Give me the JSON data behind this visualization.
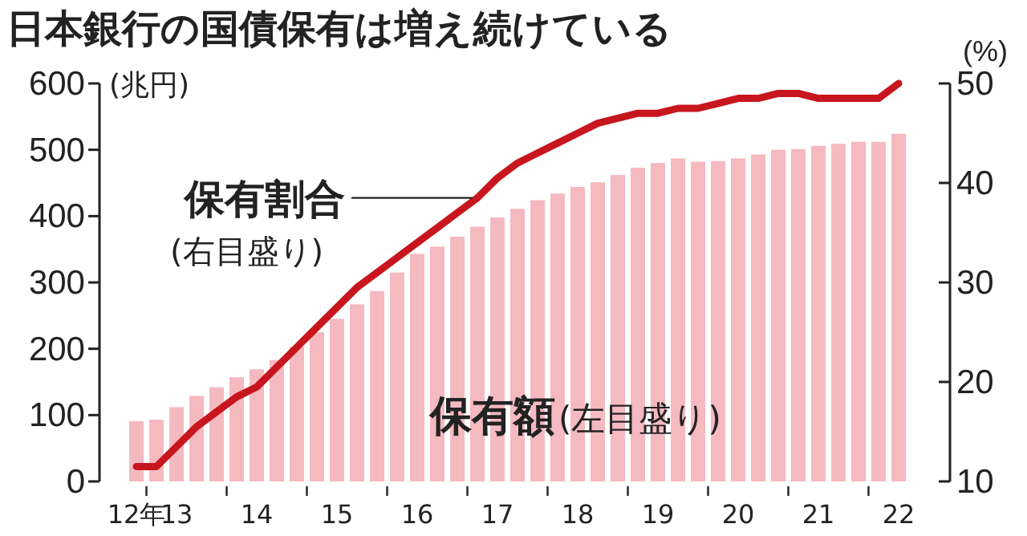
{
  "chart_data": {
    "type": "bar",
    "title": "日本銀行の国債保有は増え続けている",
    "ylabel": "(兆円)",
    "y2label": "(%)",
    "categories": [
      "12年",
      null,
      "13",
      null,
      null,
      null,
      "14",
      null,
      null,
      null,
      "15",
      null,
      null,
      null,
      "16",
      null,
      null,
      null,
      "17",
      null,
      null,
      null,
      "18",
      null,
      null,
      null,
      "19",
      null,
      null,
      null,
      "20",
      null,
      null,
      null,
      "21",
      null,
      null,
      null,
      "22"
    ],
    "series": [
      {
        "name": "保有額",
        "color": "#f5b9c0",
        "values": [
          91,
          93,
          112,
          129,
          142,
          157,
          169,
          183,
          203,
          225,
          245,
          267,
          287,
          315,
          343,
          354,
          369,
          384,
          398,
          411,
          424,
          434,
          444,
          451,
          462,
          473,
          480,
          487,
          482,
          483,
          487,
          493,
          500,
          501,
          506,
          509,
          512,
          512,
          524
        ]
      },
      {
        "name": "保有割合",
        "type": "line",
        "axis": "y2",
        "color": "#c8161e",
        "values": [
          11.5,
          11.5,
          13.5,
          15.5,
          17,
          18.5,
          19.5,
          21.5,
          23.5,
          25.5,
          27.5,
          29.5,
          31,
          32.5,
          34,
          35.5,
          37,
          38.5,
          40.5,
          42,
          43,
          44,
          45,
          46,
          46.5,
          47,
          47,
          47.5,
          47.5,
          48,
          48.5,
          48.5,
          49,
          49,
          48.5,
          48.5,
          48.5,
          48.5,
          50
        ]
      }
    ],
    "ylim": [
      0,
      600
    ],
    "yticks": [
      0,
      100,
      200,
      300,
      400,
      500,
      600
    ],
    "y2lim": [
      10,
      50
    ],
    "y2ticks": [
      10,
      20,
      30,
      40,
      50
    ],
    "annotations": [
      "(右目盛り)",
      "(左目盛り)"
    ]
  }
}
